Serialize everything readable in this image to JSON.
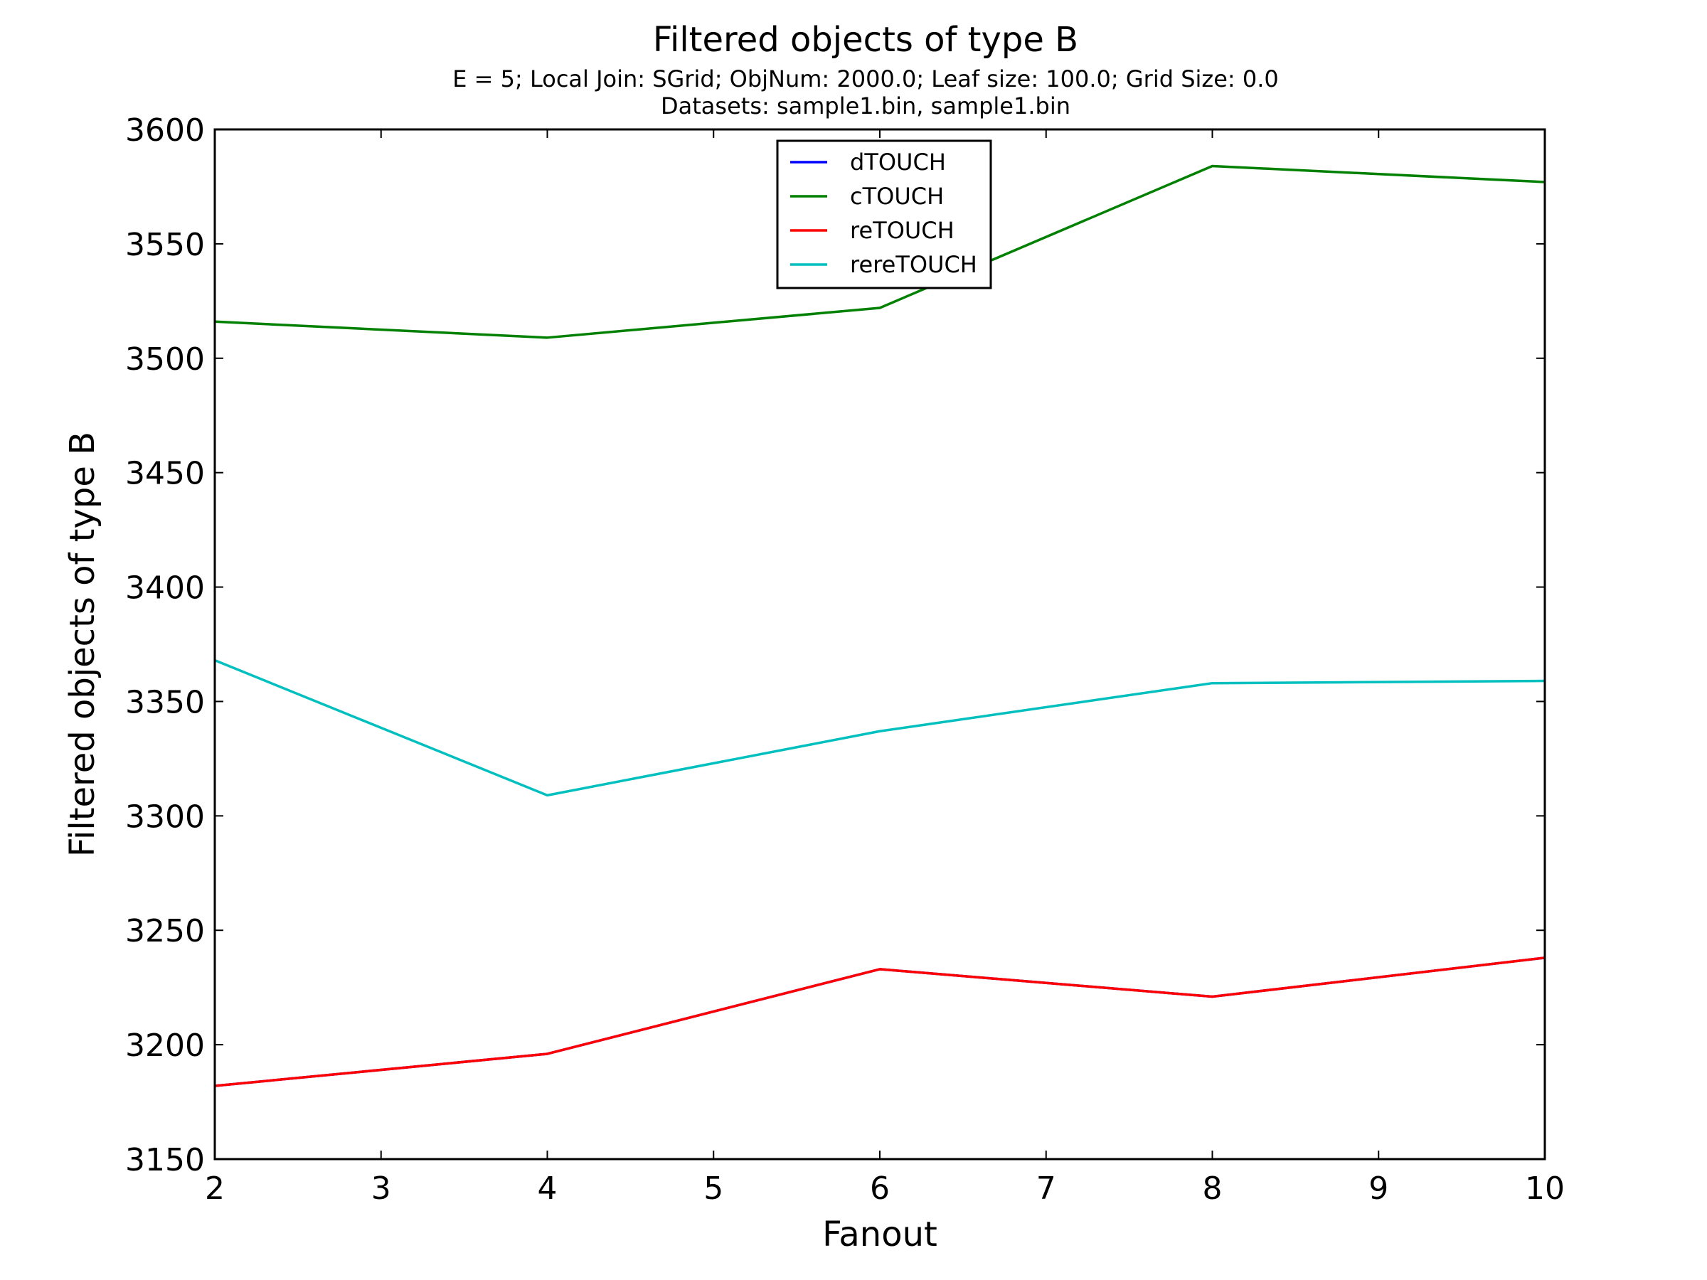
{
  "chart_data": {
    "type": "line",
    "title": "Filtered objects of type B",
    "subtitle_lines": [
      "E = 5; Local Join: SGrid; ObjNum: 2000.0; Leaf size: 100.0; Grid Size: 0.0",
      "Datasets: sample1.bin, sample1.bin"
    ],
    "xlabel": "Fanout",
    "ylabel": "Filtered objects of type B",
    "xlim": [
      2,
      10
    ],
    "ylim": [
      3150,
      3600
    ],
    "x_ticks": [
      "2",
      "3",
      "4",
      "5",
      "6",
      "7",
      "8",
      "9",
      "10"
    ],
    "y_ticks": [
      "3150",
      "3200",
      "3250",
      "3300",
      "3350",
      "3400",
      "3450",
      "3500",
      "3550",
      "3600"
    ],
    "x": [
      2,
      4,
      6,
      8,
      10
    ],
    "grid": false,
    "legend_position": "upper center",
    "series": [
      {
        "name": "dTOUCH",
        "color": "#0000ff",
        "values": [
          3182,
          3196,
          3233,
          3221,
          3238
        ]
      },
      {
        "name": "cTOUCH",
        "color": "#008000",
        "values": [
          3516,
          3509,
          3522,
          3584,
          3577
        ]
      },
      {
        "name": "reTOUCH",
        "color": "#ff0000",
        "values": [
          3182,
          3196,
          3233,
          3221,
          3238
        ]
      },
      {
        "name": "rereTOUCH",
        "color": "#00bfbf",
        "values": [
          3368,
          3309,
          3337,
          3358,
          3359
        ]
      }
    ]
  }
}
